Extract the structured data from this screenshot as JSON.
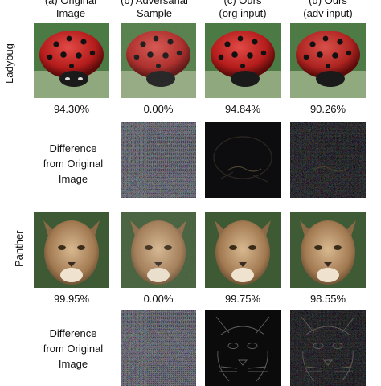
{
  "column_headers": [
    [
      "(a) Original",
      "Image"
    ],
    [
      "(b) Adversarial",
      "Sample"
    ],
    [
      "(c) Ours",
      "(org input)"
    ],
    [
      "(d) Ours",
      "(adv input)"
    ]
  ],
  "rows": [
    {
      "label": "Ladybug",
      "confidences": [
        "94.30%",
        "0.00%",
        "94.84%",
        "90.26%"
      ],
      "difference_label": [
        "Difference",
        "from Original",
        "Image"
      ]
    },
    {
      "label": "Panther",
      "confidences": [
        "99.95%",
        "0.00%",
        "99.75%",
        "98.55%"
      ],
      "difference_label": [
        "Difference",
        "from Original",
        "Image"
      ]
    }
  ]
}
